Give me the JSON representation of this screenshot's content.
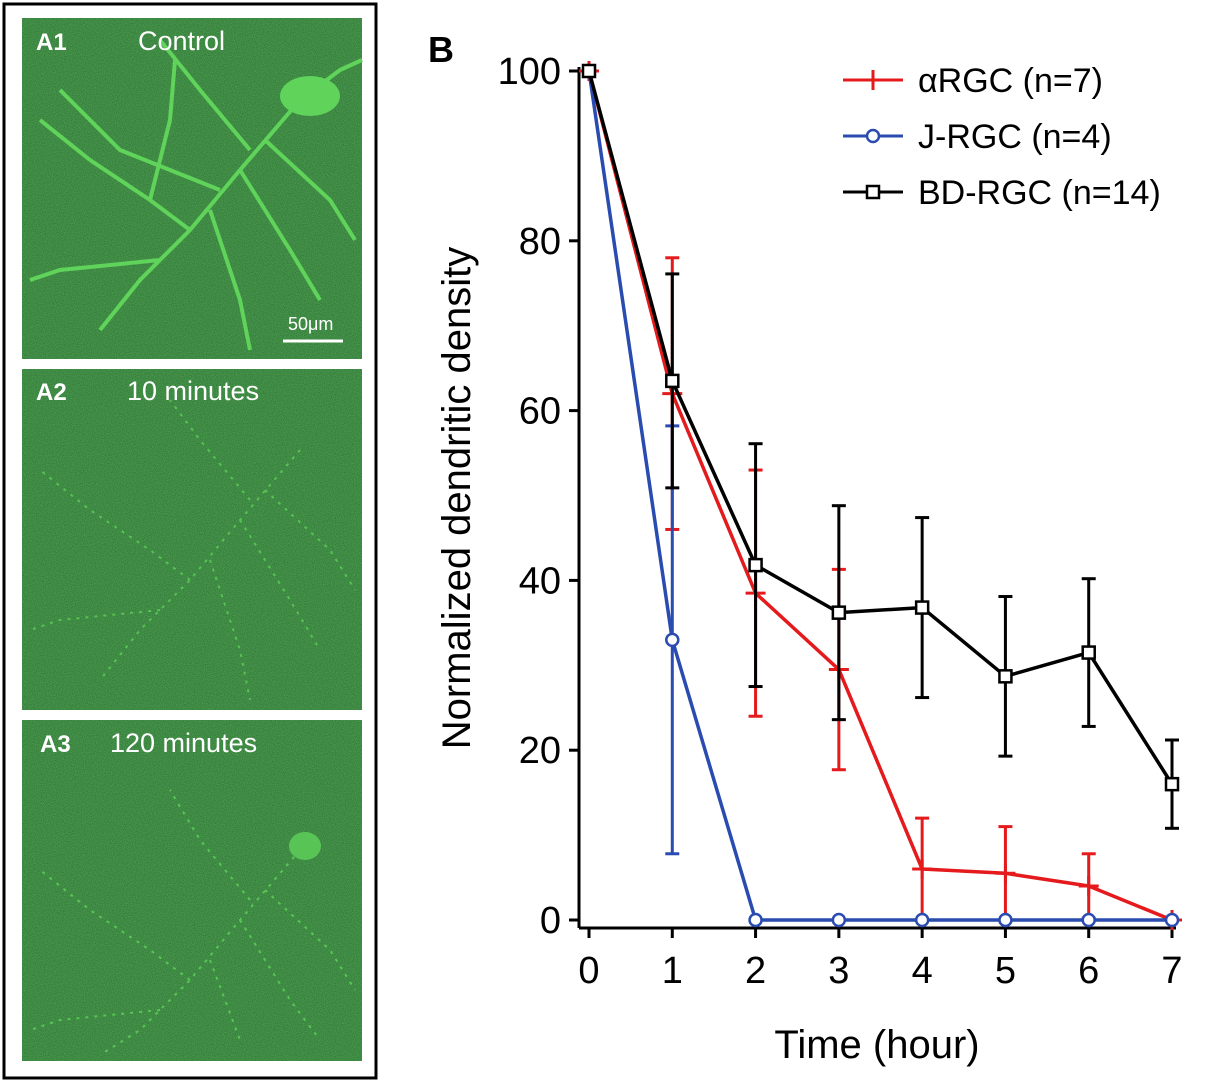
{
  "panel_a": {
    "panels": [
      {
        "letter": "A1",
        "title": "Control",
        "scale_bar_label": "50μm"
      },
      {
        "letter": "A2",
        "title": "10 minutes"
      },
      {
        "letter": "A3",
        "title": "120 minutes"
      }
    ],
    "colors": {
      "background": "#1f6a26",
      "dendrite": "#5fd35a",
      "text": "#ffffff"
    }
  },
  "panel_b_label": "B",
  "chart_data": {
    "type": "line",
    "xlabel": "Time (hour)",
    "ylabel": "Normalized dendritic density",
    "xlim": [
      0,
      7
    ],
    "ylim": [
      0,
      100
    ],
    "xticks": [
      0,
      1,
      2,
      3,
      4,
      5,
      6,
      7
    ],
    "yticks": [
      0,
      20,
      40,
      60,
      80,
      100
    ],
    "grid": false,
    "legend_position": "top-right",
    "series": [
      {
        "name": "αRGC (n=7)",
        "color": "#e41a1c",
        "marker": "plus",
        "x": [
          0,
          1,
          2,
          3,
          4,
          5,
          6,
          7
        ],
        "y": [
          100,
          62,
          38.5,
          29.5,
          6,
          5.5,
          4,
          0
        ],
        "error": [
          0,
          16,
          14.5,
          11.8,
          6,
          5.5,
          3.8,
          0
        ]
      },
      {
        "name": "J-RGC (n=4)",
        "color": "#2a4bb0",
        "marker": "circle",
        "x": [
          0,
          1,
          2,
          3,
          4,
          5,
          6,
          7
        ],
        "y": [
          100,
          33,
          0,
          0,
          0,
          0,
          0,
          0
        ],
        "error": [
          0,
          25.2,
          0,
          0,
          0,
          0,
          0,
          0
        ]
      },
      {
        "name": "BD-RGC (n=14)",
        "color": "#000000",
        "marker": "square",
        "x": [
          0,
          1,
          2,
          3,
          4,
          5,
          6,
          7
        ],
        "y": [
          100,
          63.5,
          41.8,
          36.2,
          36.8,
          28.7,
          31.5,
          16
        ],
        "error": [
          0,
          12.6,
          14.3,
          12.6,
          10.6,
          9.4,
          8.7,
          5.2
        ]
      }
    ]
  }
}
